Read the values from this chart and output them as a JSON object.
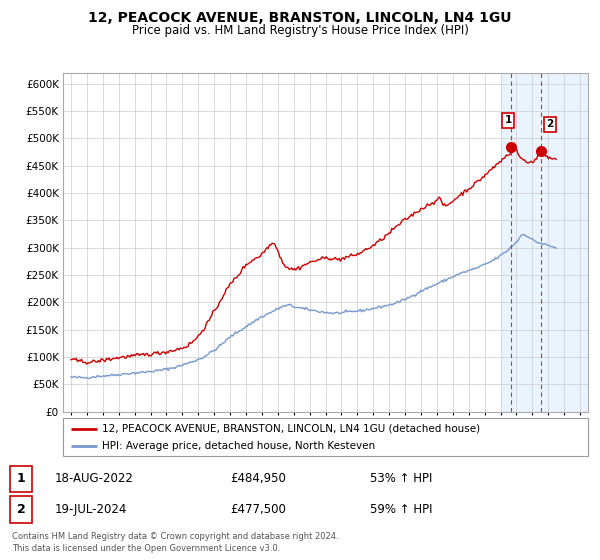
{
  "title": "12, PEACOCK AVENUE, BRANSTON, LINCOLN, LN4 1GU",
  "subtitle": "Price paid vs. HM Land Registry's House Price Index (HPI)",
  "ylim": [
    0,
    620000
  ],
  "yticks": [
    0,
    50000,
    100000,
    150000,
    200000,
    250000,
    300000,
    350000,
    400000,
    450000,
    500000,
    550000,
    600000
  ],
  "xlim_start": 1994.5,
  "xlim_end": 2027.5,
  "bg_color": "#ffffff",
  "grid_color": "#cccccc",
  "red_line_color": "#cc0000",
  "blue_line_color": "#7799cc",
  "shade_color": "#ddeeff",
  "dashed_color": "#cc3333",
  "marker_color": "#cc0000",
  "legend_label_red": "12, PEACOCK AVENUE, BRANSTON, LINCOLN, LN4 1GU (detached house)",
  "legend_label_blue": "HPI: Average price, detached house, North Kesteven",
  "transaction1_date": "18-AUG-2022",
  "transaction1_price": "£484,950",
  "transaction1_pct": "53% ↑ HPI",
  "transaction2_date": "19-JUL-2024",
  "transaction2_price": "£477,500",
  "transaction2_pct": "59% ↑ HPI",
  "footer": "Contains HM Land Registry data © Crown copyright and database right 2024.\nThis data is licensed under the Open Government Licence v3.0.",
  "transaction1_x": 2022.63,
  "transaction1_y": 484950,
  "transaction2_x": 2024.55,
  "transaction2_y": 477500,
  "shade_x1": 2022.1,
  "vline1_x": 2022.63,
  "vline2_x": 2024.55,
  "hatch_x": 2025.1
}
